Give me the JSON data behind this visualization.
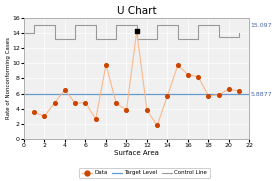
{
  "title": "U Chart",
  "xlabel": "Surface Area",
  "ylabel": "Rate of Nonconforming Cases",
  "xlim": [
    0,
    22
  ],
  "ylim": [
    0,
    16
  ],
  "xticks": [
    0,
    2,
    4,
    6,
    8,
    10,
    12,
    14,
    16,
    18,
    20,
    22
  ],
  "yticks": [
    0,
    2,
    4,
    6,
    8,
    10,
    12,
    14,
    16
  ],
  "x_data": [
    1,
    2,
    3,
    4,
    5,
    6,
    7,
    8,
    9,
    10,
    11,
    12,
    13,
    14,
    15,
    16,
    17,
    18,
    19,
    20,
    21
  ],
  "y_data": [
    3.5,
    3.0,
    4.8,
    6.5,
    4.7,
    4.8,
    2.6,
    9.8,
    4.7,
    3.8,
    14.2,
    3.8,
    1.8,
    5.7,
    9.7,
    8.5,
    8.2,
    5.7,
    5.8,
    6.6,
    6.3
  ],
  "target_level": 5.8877,
  "control_line_value": 15.097,
  "data_line_color": "#f9b98a",
  "data_marker_color": "#cc4400",
  "target_color": "#6699cc",
  "control_color": "#999999",
  "background_color": "#f0f0f0",
  "grid_color": "#ffffff",
  "right_label_target": "5.8877",
  "right_label_control": "15.097",
  "ucl_steps_x": [
    0,
    1,
    1,
    3,
    3,
    5,
    5,
    7,
    7,
    9,
    9,
    11,
    11,
    13,
    13,
    15,
    15,
    17,
    17,
    19,
    19,
    21,
    21
  ],
  "ucl_steps_y": [
    14.0,
    14.0,
    15.0,
    15.0,
    13.2,
    13.2,
    15.0,
    15.0,
    13.2,
    13.2,
    15.0,
    15.0,
    13.2,
    13.2,
    15.0,
    15.0,
    13.2,
    13.2,
    15.0,
    15.0,
    13.5,
    13.5,
    14.0
  ]
}
